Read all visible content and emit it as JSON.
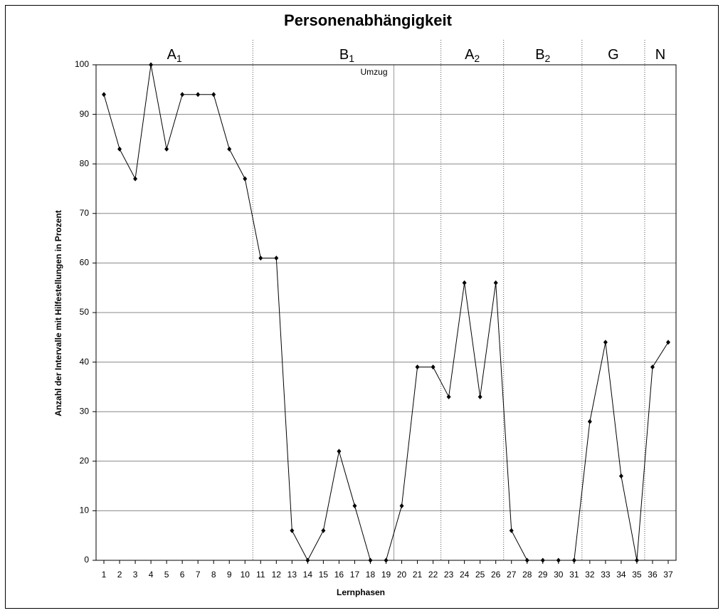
{
  "chart_data": {
    "type": "line",
    "title": "Personenabhängigkeit",
    "x_label": "Lernphasen",
    "y_label": "Anzahl der Intervalle mit Hilfestellungen in Prozent",
    "x": [
      1,
      2,
      3,
      4,
      5,
      6,
      7,
      8,
      9,
      10,
      11,
      12,
      13,
      14,
      15,
      16,
      17,
      18,
      19,
      20,
      21,
      22,
      23,
      24,
      25,
      26,
      27,
      28,
      29,
      30,
      31,
      32,
      33,
      34,
      35,
      36,
      37
    ],
    "values": [
      94,
      83,
      77,
      100,
      83,
      94,
      94,
      94,
      83,
      77,
      61,
      61,
      6,
      0,
      6,
      22,
      11,
      0,
      0,
      11,
      39,
      39,
      33,
      56,
      33,
      56,
      6,
      0,
      0,
      0,
      0,
      28,
      44,
      17,
      0,
      39,
      44
    ],
    "color": "#000000",
    "xlim": [
      0.5,
      37.5
    ],
    "xticks": [
      1,
      2,
      3,
      4,
      5,
      6,
      7,
      8,
      9,
      10,
      11,
      12,
      13,
      14,
      15,
      16,
      17,
      18,
      19,
      20,
      21,
      22,
      23,
      24,
      25,
      26,
      27,
      28,
      29,
      30,
      31,
      32,
      33,
      34,
      35,
      36,
      37
    ],
    "ylim": [
      0,
      100
    ],
    "yticks": [
      0,
      10,
      20,
      30,
      40,
      50,
      60,
      70,
      80,
      90,
      100
    ],
    "grid": true,
    "phases": [
      {
        "name": "A",
        "sub": "1",
        "span": [
          1,
          10
        ]
      },
      {
        "name": "B",
        "sub": "1",
        "span": [
          11,
          22
        ]
      },
      {
        "name": "A",
        "sub": "2",
        "span": [
          23,
          26
        ]
      },
      {
        "name": "B",
        "sub": "2",
        "span": [
          27,
          31
        ]
      },
      {
        "name": "G",
        "span": [
          32,
          35
        ]
      },
      {
        "name": "N",
        "span": [
          36,
          37
        ]
      }
    ],
    "annotations": [
      {
        "text": "Umzug",
        "x": 19.5
      }
    ]
  }
}
